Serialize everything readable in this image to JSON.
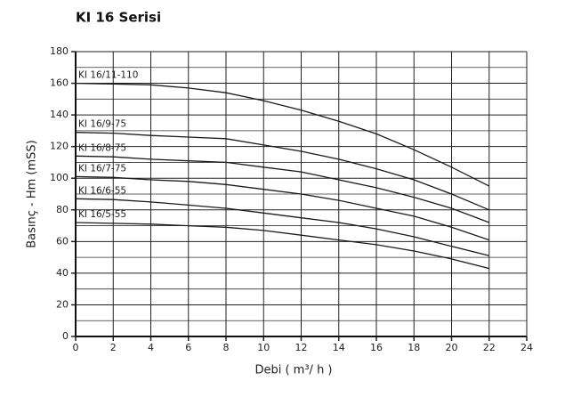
{
  "chart_data": {
    "type": "line",
    "title": "KI 16 Serisi",
    "x_label": "Debi ( m³/ h )",
    "y_label": "Basınç - Hm (mSS)",
    "x": [
      0,
      2,
      4,
      6,
      8,
      10,
      12,
      14,
      16,
      18,
      20,
      22
    ],
    "series": [
      {
        "name": "KI 16/11-110",
        "color": "#1a1a1a",
        "values": [
          160,
          159.5,
          159,
          157,
          154,
          149,
          143,
          136,
          128,
          118,
          107,
          95
        ]
      },
      {
        "name": "KI 16/9-75",
        "color": "#1a1a1a",
        "values": [
          129,
          128.5,
          127,
          126,
          125,
          121,
          117,
          112,
          106,
          99,
          90,
          80
        ]
      },
      {
        "name": "KI 16/8-75",
        "color": "#1a1a1a",
        "values": [
          114,
          113.5,
          112,
          111,
          110,
          107,
          104,
          99,
          94,
          88,
          81,
          72
        ]
      },
      {
        "name": "KI 16/7-75",
        "color": "#1a1a1a",
        "values": [
          101,
          100.5,
          99,
          98,
          96,
          93,
          90,
          86,
          81,
          76,
          69,
          61
        ]
      },
      {
        "name": "KI 16/6-55",
        "color": "#1a1a1a",
        "values": [
          87,
          86.5,
          85,
          83,
          81,
          78,
          75,
          72,
          68,
          63,
          57,
          51
        ]
      },
      {
        "name": "KI 16/5-55",
        "color": "#1a1a1a",
        "values": [
          72,
          71.5,
          71,
          70,
          69,
          67,
          64,
          61,
          58,
          54,
          49,
          43
        ]
      }
    ],
    "xlim": [
      0,
      24
    ],
    "xticks": [
      0,
      2,
      4,
      6,
      8,
      10,
      12,
      14,
      16,
      18,
      20,
      22,
      24
    ],
    "ylim": [
      0,
      180
    ],
    "yticks": [
      0,
      20,
      40,
      60,
      80,
      100,
      120,
      140,
      160,
      180
    ],
    "grid": true
  }
}
